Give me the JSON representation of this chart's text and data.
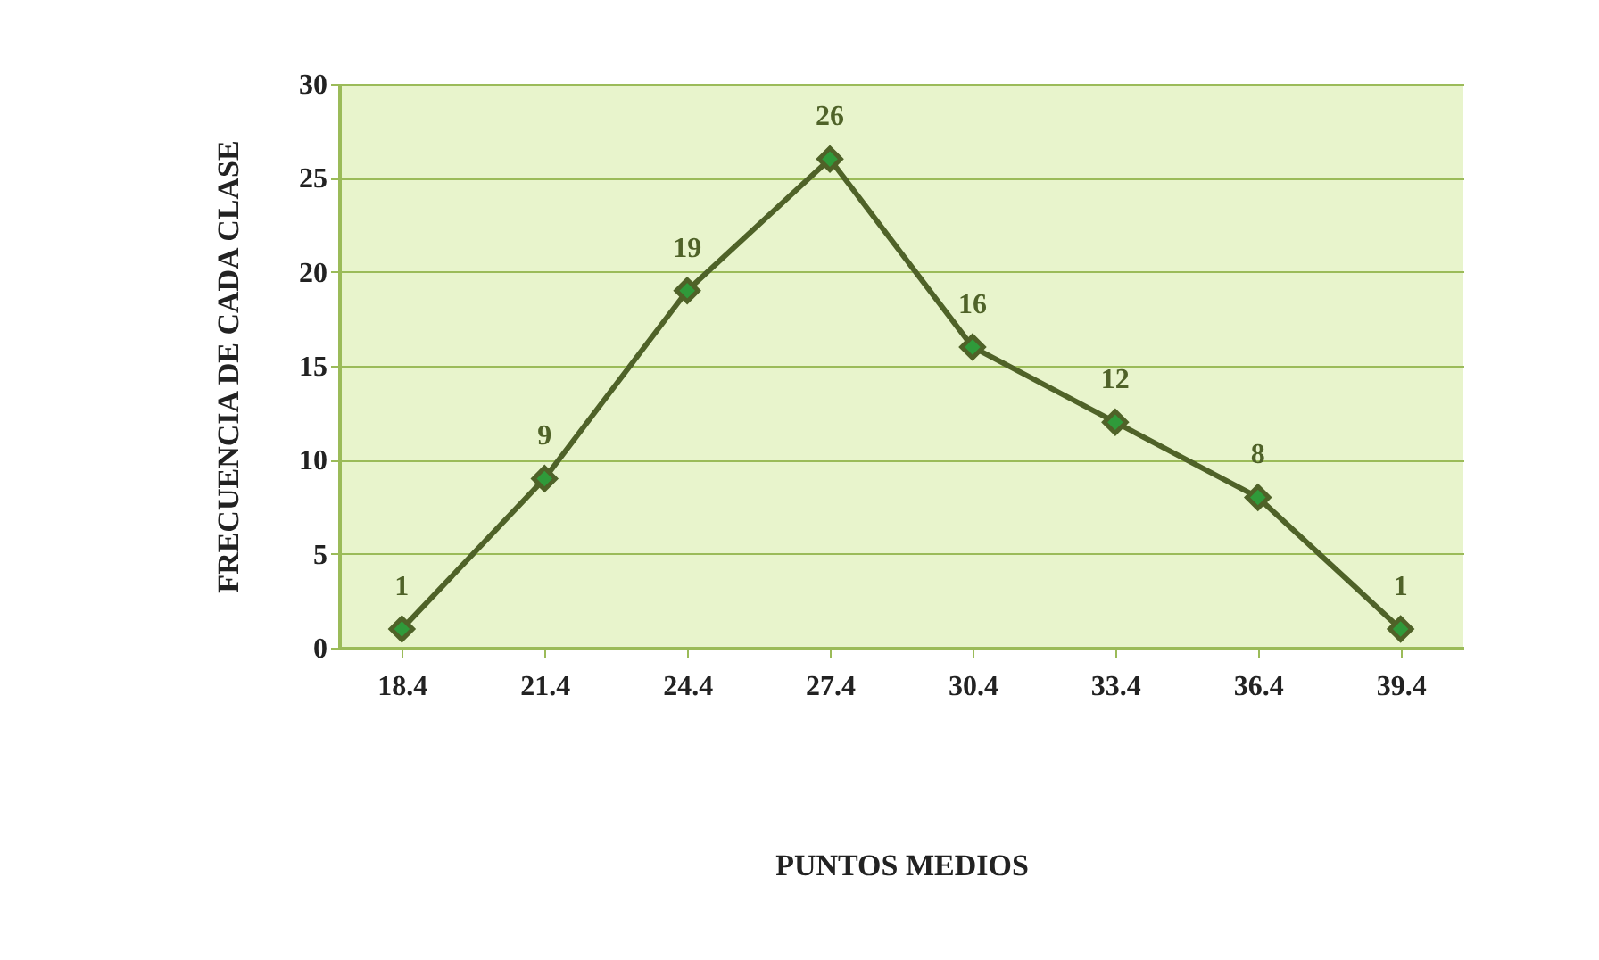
{
  "chart_data": {
    "type": "line",
    "xlabel": "PUNTOS MEDIOS",
    "ylabel": "FRECUENCIA DE CADA CLASE",
    "categories": [
      "18.4",
      "21.4",
      "24.4",
      "27.4",
      "30.4",
      "33.4",
      "36.4",
      "39.4"
    ],
    "series": [
      {
        "color": "#4f6228",
        "values": [
          1,
          9,
          19,
          26,
          16,
          12,
          8,
          1
        ]
      }
    ],
    "ylim": [
      0,
      30
    ],
    "yticks": [
      0,
      5,
      10,
      15,
      20,
      25,
      30
    ],
    "grid": "y",
    "marker": "diamond",
    "line_style": "solid",
    "data_labels": true
  }
}
